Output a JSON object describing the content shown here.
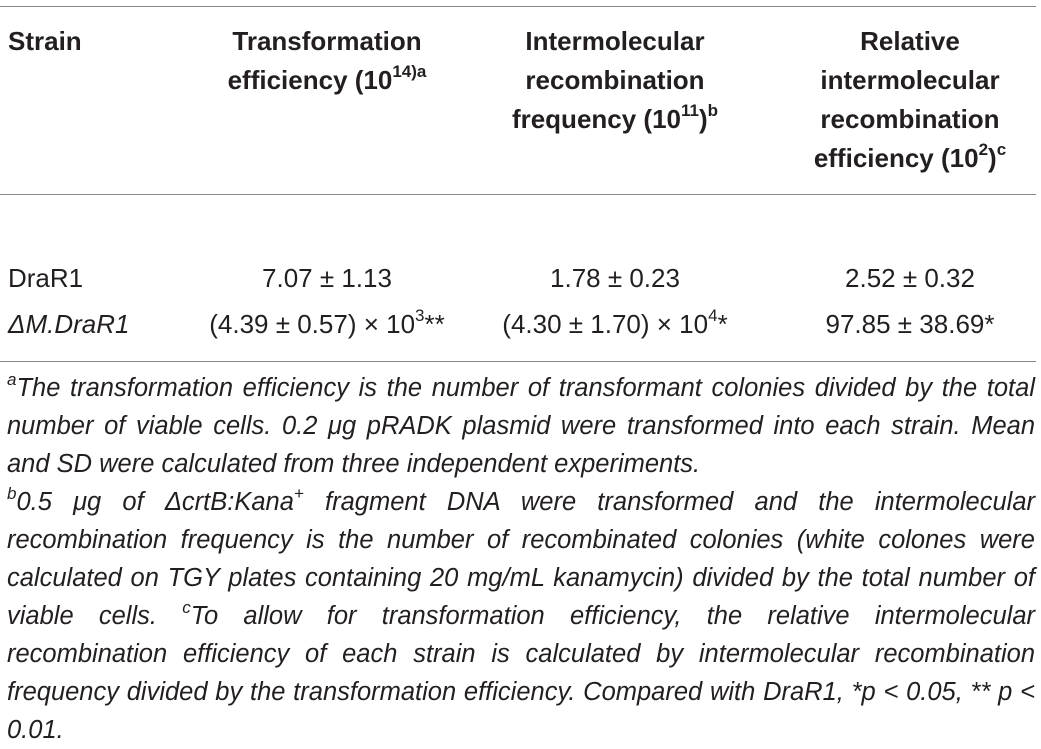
{
  "table": {
    "headers": {
      "strain": "Strain",
      "transformation": [
        "Transformation",
        "efficiency (10",
        "14)",
        "a"
      ],
      "intermolecular": [
        "Intermolecular",
        "recombination",
        "frequency (10",
        "11",
        ")",
        "b"
      ],
      "relative": [
        "Relative",
        "intermolecular",
        "recombination",
        "efficiency (10",
        "2",
        ")",
        "c"
      ]
    },
    "rows": [
      {
        "strain": "DraR1",
        "transformation": "7.07 ± 1.13",
        "intermolecular": "1.78 ± 0.23",
        "relative": "2.52 ± 0.32"
      },
      {
        "strain": "ΔM.DraR1",
        "transformation_base": "(4.39 ± 0.57) × 10",
        "transformation_exp": "3",
        "transformation_sig": "**",
        "intermolecular_base": "(4.30 ± 1.70) × 10",
        "intermolecular_exp": "4",
        "intermolecular_sig": "*",
        "relative": "97.85 ± 38.69*"
      }
    ]
  },
  "footnotes": {
    "a_mark": "a",
    "a_text": "The transformation efficiency is the number of transformant colonies divided by the total number of viable cells. 0.2 μg pRADK plasmid were transformed into each strain. Mean and SD were calculated from three independent experiments.",
    "b_mark": "b",
    "b_text_1": "0.5 μg of ΔcrtB:Kana",
    "b_sup": "+",
    "b_text_2": " fragment DNA were transformed and the intermolecular recombination frequency is the number of recombinated colonies (white colones were calculated on TGY plates containing 20 mg/mL kanamycin) divided by the total number of viable cells. ",
    "c_mark": "c",
    "c_text": "To allow for transformation efficiency, the relative intermolecular recombination efficiency of each strain is calculated by intermolecular recombination frequency divided by the transformation efficiency. Compared with DraR1, *p < 0.05, ** p < 0.01."
  }
}
